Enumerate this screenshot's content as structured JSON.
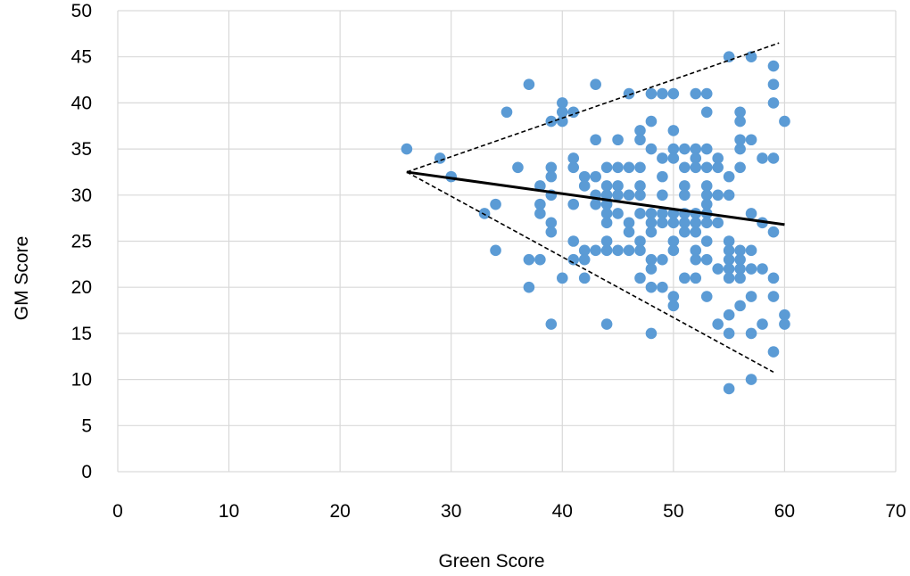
{
  "chart_data": {
    "type": "scatter",
    "title": "",
    "xlabel": "Green Score",
    "ylabel": "GM Score",
    "xlim": [
      0,
      70
    ],
    "ylim": [
      0,
      50
    ],
    "x_ticks": [
      0,
      10,
      20,
      30,
      40,
      50,
      60,
      70
    ],
    "y_ticks": [
      0,
      5,
      10,
      15,
      20,
      25,
      30,
      35,
      40,
      45,
      50
    ],
    "x_tick_labels": [
      "0",
      "10",
      "20",
      "30",
      "40",
      "50",
      "60",
      "70"
    ],
    "y_tick_labels": [
      "0",
      "5",
      "10",
      "15",
      "20",
      "25",
      "30",
      "35",
      "40",
      "45",
      "50"
    ],
    "grid": true,
    "legend": "none",
    "colors": {
      "points": "#5B9BD5",
      "grid": "#d9d9d9",
      "lines": "#000000"
    },
    "points": [
      [
        26,
        35
      ],
      [
        29,
        34
      ],
      [
        30,
        32
      ],
      [
        33,
        28
      ],
      [
        34,
        29
      ],
      [
        34,
        24
      ],
      [
        35,
        39
      ],
      [
        36,
        33
      ],
      [
        37,
        42
      ],
      [
        37,
        23
      ],
      [
        37,
        20
      ],
      [
        38,
        31
      ],
      [
        38,
        29
      ],
      [
        38,
        28
      ],
      [
        38,
        23
      ],
      [
        39,
        38
      ],
      [
        39,
        33
      ],
      [
        39,
        32
      ],
      [
        39,
        30
      ],
      [
        39,
        27
      ],
      [
        39,
        26
      ],
      [
        39,
        16
      ],
      [
        40,
        40
      ],
      [
        40,
        39
      ],
      [
        40,
        38
      ],
      [
        40,
        21
      ],
      [
        41,
        39
      ],
      [
        41,
        34
      ],
      [
        41,
        33
      ],
      [
        41,
        29
      ],
      [
        41,
        25
      ],
      [
        41,
        23
      ],
      [
        42,
        32
      ],
      [
        42,
        31
      ],
      [
        42,
        24
      ],
      [
        42,
        23
      ],
      [
        42,
        21
      ],
      [
        43,
        42
      ],
      [
        43,
        36
      ],
      [
        43,
        32
      ],
      [
        43,
        30
      ],
      [
        43,
        29
      ],
      [
        43,
        24
      ],
      [
        44,
        33
      ],
      [
        44,
        31
      ],
      [
        44,
        30
      ],
      [
        44,
        29
      ],
      [
        44,
        28
      ],
      [
        44,
        27
      ],
      [
        44,
        25
      ],
      [
        44,
        24
      ],
      [
        44,
        16
      ],
      [
        45,
        36
      ],
      [
        45,
        33
      ],
      [
        45,
        31
      ],
      [
        45,
        30
      ],
      [
        45,
        28
      ],
      [
        45,
        24
      ],
      [
        46,
        41
      ],
      [
        46,
        33
      ],
      [
        46,
        30
      ],
      [
        46,
        27
      ],
      [
        46,
        26
      ],
      [
        46,
        24
      ],
      [
        47,
        37
      ],
      [
        47,
        36
      ],
      [
        47,
        33
      ],
      [
        47,
        31
      ],
      [
        47,
        30
      ],
      [
        47,
        28
      ],
      [
        47,
        25
      ],
      [
        47,
        24
      ],
      [
        47,
        21
      ],
      [
        48,
        41
      ],
      [
        48,
        38
      ],
      [
        48,
        35
      ],
      [
        48,
        28
      ],
      [
        48,
        27
      ],
      [
        48,
        26
      ],
      [
        48,
        23
      ],
      [
        48,
        22
      ],
      [
        48,
        20
      ],
      [
        48,
        15
      ],
      [
        49,
        41
      ],
      [
        49,
        34
      ],
      [
        49,
        32
      ],
      [
        49,
        30
      ],
      [
        49,
        28
      ],
      [
        49,
        27
      ],
      [
        49,
        23
      ],
      [
        49,
        20
      ],
      [
        50,
        41
      ],
      [
        50,
        37
      ],
      [
        50,
        35
      ],
      [
        50,
        34
      ],
      [
        50,
        28
      ],
      [
        50,
        27
      ],
      [
        50,
        25
      ],
      [
        50,
        24
      ],
      [
        50,
        19
      ],
      [
        50,
        18
      ],
      [
        51,
        35
      ],
      [
        51,
        33
      ],
      [
        51,
        31
      ],
      [
        51,
        30
      ],
      [
        51,
        28
      ],
      [
        51,
        27
      ],
      [
        51,
        26
      ],
      [
        51,
        21
      ],
      [
        52,
        41
      ],
      [
        52,
        35
      ],
      [
        52,
        34
      ],
      [
        52,
        33
      ],
      [
        52,
        28
      ],
      [
        52,
        27
      ],
      [
        52,
        26
      ],
      [
        52,
        24
      ],
      [
        52,
        23
      ],
      [
        52,
        21
      ],
      [
        53,
        41
      ],
      [
        53,
        39
      ],
      [
        53,
        35
      ],
      [
        53,
        33
      ],
      [
        53,
        31
      ],
      [
        53,
        30
      ],
      [
        53,
        29
      ],
      [
        53,
        28
      ],
      [
        53,
        27
      ],
      [
        53,
        25
      ],
      [
        53,
        23
      ],
      [
        53,
        19
      ],
      [
        54,
        34
      ],
      [
        54,
        33
      ],
      [
        54,
        30
      ],
      [
        54,
        27
      ],
      [
        54,
        22
      ],
      [
        54,
        16
      ],
      [
        55,
        45
      ],
      [
        55,
        32
      ],
      [
        55,
        30
      ],
      [
        55,
        25
      ],
      [
        55,
        24
      ],
      [
        55,
        23
      ],
      [
        55,
        22
      ],
      [
        55,
        21
      ],
      [
        55,
        17
      ],
      [
        55,
        15
      ],
      [
        55,
        9
      ],
      [
        56,
        39
      ],
      [
        56,
        38
      ],
      [
        56,
        36
      ],
      [
        56,
        35
      ],
      [
        56,
        33
      ],
      [
        56,
        24
      ],
      [
        56,
        23
      ],
      [
        56,
        22
      ],
      [
        56,
        21
      ],
      [
        56,
        18
      ],
      [
        57,
        45
      ],
      [
        57,
        36
      ],
      [
        57,
        28
      ],
      [
        57,
        24
      ],
      [
        57,
        22
      ],
      [
        57,
        19
      ],
      [
        57,
        15
      ],
      [
        57,
        10
      ],
      [
        58,
        34
      ],
      [
        58,
        27
      ],
      [
        58,
        22
      ],
      [
        58,
        16
      ],
      [
        59,
        44
      ],
      [
        59,
        42
      ],
      [
        59,
        40
      ],
      [
        59,
        34
      ],
      [
        59,
        26
      ],
      [
        59,
        21
      ],
      [
        59,
        19
      ],
      [
        59,
        13
      ],
      [
        60,
        38
      ],
      [
        60,
        17
      ],
      [
        60,
        16
      ]
    ],
    "lines": [
      {
        "style": "solid",
        "from": [
          26,
          32.5
        ],
        "to": [
          60,
          26.8
        ]
      },
      {
        "style": "dashed",
        "from": [
          26,
          32.5
        ],
        "to": [
          59.5,
          46.5
        ]
      },
      {
        "style": "dashed",
        "from": [
          26,
          32.5
        ],
        "to": [
          59,
          10.8
        ]
      }
    ]
  }
}
